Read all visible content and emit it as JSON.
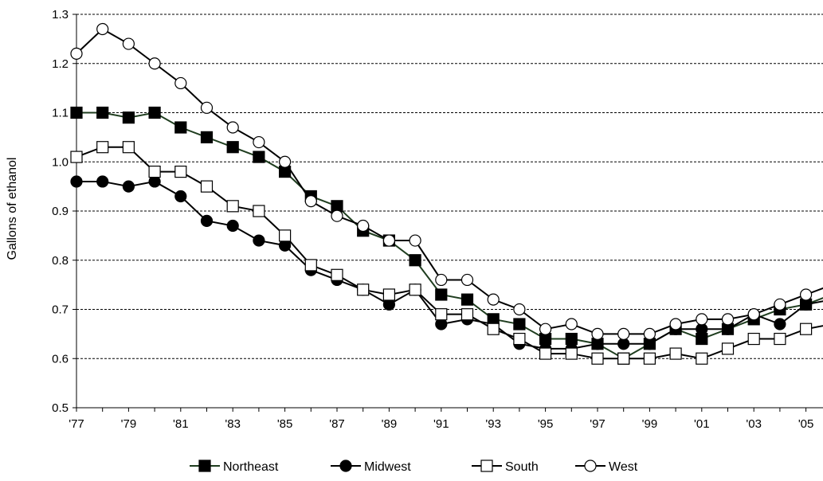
{
  "chart_data": {
    "type": "line",
    "title": "",
    "xlabel": "",
    "ylabel": "Gallons of ethanol",
    "ylim": [
      0.5,
      1.3
    ],
    "yticks": [
      "0.5",
      "0.6",
      "0.7",
      "0.8",
      "0.9",
      "1.0",
      "1.1",
      "1.2",
      "1.3"
    ],
    "grid": "horizontal dashed",
    "legend_position": "bottom",
    "x": [
      1977,
      1978,
      1979,
      1980,
      1981,
      1982,
      1983,
      1984,
      1985,
      1986,
      1987,
      1988,
      1989,
      1990,
      1991,
      1992,
      1993,
      1994,
      1995,
      1996,
      1997,
      1998,
      1999,
      2000,
      2001,
      2002,
      2003,
      2004,
      2005,
      2006
    ],
    "xtick_labels": [
      "'77",
      "'79",
      "'81",
      "'83",
      "'85",
      "'87",
      "'89",
      "'91",
      "'93",
      "'95",
      "'97",
      "'99",
      "'01",
      "'03",
      "'05"
    ],
    "xtick_values": [
      1977,
      1979,
      1981,
      1983,
      1985,
      1987,
      1989,
      1991,
      1993,
      1995,
      1997,
      1999,
      2001,
      2003,
      2005
    ],
    "series": [
      {
        "name": "Northeast",
        "marker": "filled-square",
        "line_color": "#1f3d1f",
        "values": [
          1.1,
          1.1,
          1.09,
          1.1,
          1.07,
          1.05,
          1.03,
          1.01,
          0.98,
          0.93,
          0.91,
          0.86,
          0.84,
          0.8,
          0.73,
          0.72,
          0.68,
          0.67,
          0.64,
          0.64,
          0.63,
          0.6,
          0.63,
          0.66,
          0.64,
          0.66,
          0.68,
          0.7,
          0.71,
          0.73
        ]
      },
      {
        "name": "Midwest",
        "marker": "filled-circle",
        "line_color": "#000000",
        "values": [
          0.96,
          0.96,
          0.95,
          0.96,
          0.93,
          0.88,
          0.87,
          0.84,
          0.83,
          0.78,
          0.76,
          0.74,
          0.71,
          0.74,
          0.67,
          0.68,
          0.67,
          0.63,
          0.62,
          0.62,
          0.63,
          0.63,
          0.63,
          0.66,
          0.66,
          0.66,
          0.69,
          0.67,
          0.71,
          0.72
        ]
      },
      {
        "name": "South",
        "marker": "open-square",
        "line_color": "#000000",
        "values": [
          1.01,
          1.03,
          1.03,
          0.98,
          0.98,
          0.95,
          0.91,
          0.9,
          0.85,
          0.79,
          0.77,
          0.74,
          0.73,
          0.74,
          0.69,
          0.69,
          0.66,
          0.64,
          0.61,
          0.61,
          0.6,
          0.6,
          0.6,
          0.61,
          0.6,
          0.62,
          0.64,
          0.64,
          0.66,
          0.67
        ]
      },
      {
        "name": "West",
        "marker": "open-circle",
        "line_color": "#000000",
        "values": [
          1.22,
          1.27,
          1.24,
          1.2,
          1.16,
          1.11,
          1.07,
          1.04,
          1.0,
          0.92,
          0.89,
          0.87,
          0.84,
          0.84,
          0.76,
          0.76,
          0.72,
          0.7,
          0.66,
          0.67,
          0.65,
          0.65,
          0.65,
          0.67,
          0.68,
          0.68,
          0.69,
          0.71,
          0.73,
          0.75
        ]
      }
    ]
  }
}
